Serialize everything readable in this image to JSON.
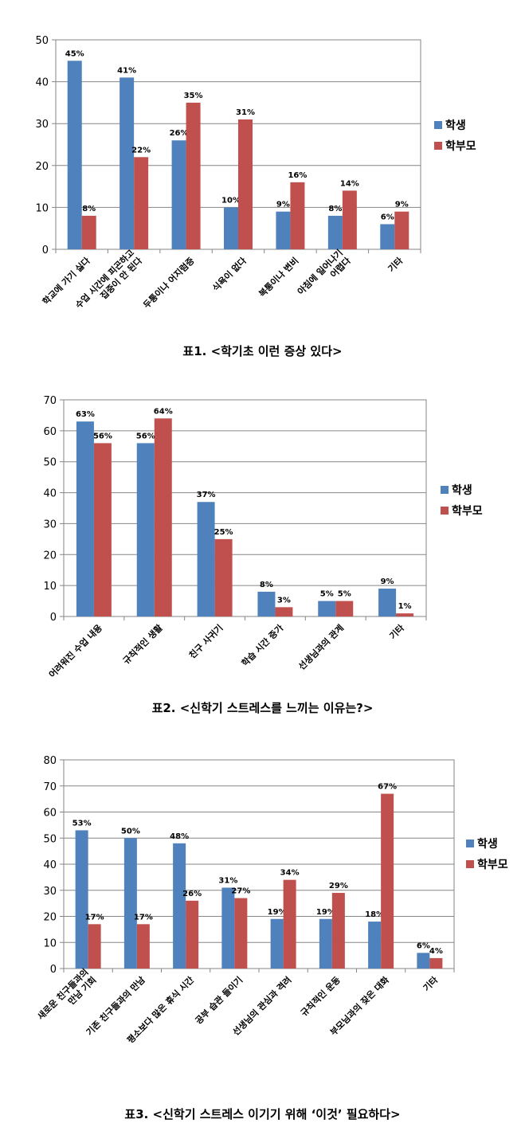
{
  "colors": {
    "student": "#4F81BD",
    "parent": "#C0504D",
    "axis": "#868686",
    "grid": "#868686",
    "text": "#000000"
  },
  "chart_data": [
    {
      "type": "bar",
      "title": "",
      "ylim": [
        0,
        50
      ],
      "yticks": [
        0,
        10,
        20,
        30,
        40,
        50
      ],
      "grid": true,
      "legend_position": "right",
      "categories": [
        [
          "학교에 가기 싫다"
        ],
        [
          "수업 시간에 피곤하고",
          "집중이 안 된다"
        ],
        [
          "두통이나 어지럼증"
        ],
        [
          "식욕이 없다"
        ],
        [
          "복통이나 변비"
        ],
        [
          "아침에 일어나기",
          "어렵다"
        ],
        [
          "기타"
        ]
      ],
      "series": [
        {
          "name": "학생",
          "values": [
            45,
            41,
            26,
            10,
            9,
            8,
            6
          ],
          "labels": [
            "45%",
            "41%",
            "26%",
            "10%",
            "9%",
            "8%",
            "6%"
          ]
        },
        {
          "name": "학부모",
          "values": [
            8,
            22,
            35,
            31,
            16,
            14,
            9
          ],
          "labels": [
            "8%",
            "22%",
            "35%",
            "31%",
            "16%",
            "14%",
            "9%"
          ]
        }
      ]
    },
    {
      "type": "bar",
      "title": "",
      "ylim": [
        0,
        70
      ],
      "yticks": [
        0,
        10,
        20,
        30,
        40,
        50,
        60,
        70
      ],
      "grid": true,
      "legend_position": "right",
      "categories": [
        [
          "어려워진 수업 내용"
        ],
        [
          "규칙적인 생활"
        ],
        [
          "친구 사귀기"
        ],
        [
          "학습 시간 증가"
        ],
        [
          "선생님과의 관계"
        ],
        [
          "기타"
        ]
      ],
      "series": [
        {
          "name": "학생",
          "values": [
            63,
            56,
            37,
            8,
            5,
            9
          ],
          "labels": [
            "63%",
            "56%",
            "37%",
            "8%",
            "5%",
            "9%"
          ]
        },
        {
          "name": "학부모",
          "values": [
            56,
            64,
            25,
            3,
            5,
            1
          ],
          "labels": [
            "56%",
            "64%",
            "25%",
            "3%",
            "5%",
            "1%"
          ]
        }
      ]
    },
    {
      "type": "bar",
      "title": "",
      "ylim": [
        0,
        80
      ],
      "yticks": [
        0,
        10,
        20,
        30,
        40,
        50,
        60,
        70,
        80
      ],
      "grid": true,
      "legend_position": "right",
      "categories": [
        [
          "새로운 친구들과의",
          "만남 기회"
        ],
        [
          "기존 친구들과의 만남"
        ],
        [
          "평소보다 많은 휴식 시간"
        ],
        [
          "공부 습관 들이기"
        ],
        [
          "선생님의 관심과 격려"
        ],
        [
          "규칙적인 운동"
        ],
        [
          "부모님과의 잦은 대화"
        ],
        [
          "기타"
        ]
      ],
      "series": [
        {
          "name": "학생",
          "values": [
            53,
            50,
            48,
            31,
            19,
            19,
            18,
            6
          ],
          "labels": [
            "53%",
            "50%",
            "48%",
            "31%",
            "19%",
            "19%",
            "18%",
            "6%"
          ]
        },
        {
          "name": "학부모",
          "values": [
            17,
            17,
            26,
            27,
            34,
            29,
            67,
            4
          ],
          "labels": [
            "17%",
            "17%",
            "26%",
            "27%",
            "34%",
            "29%",
            "67%",
            "4%"
          ]
        }
      ]
    }
  ],
  "captions": [
    "표1. <학기초 이런 증상 있다>",
    "표2. <신학기 스트레스를 느끼는 이유는?>",
    "표3. <신학기 스트레스 이기기 위해 ‘이것’ 필요하다>"
  ]
}
